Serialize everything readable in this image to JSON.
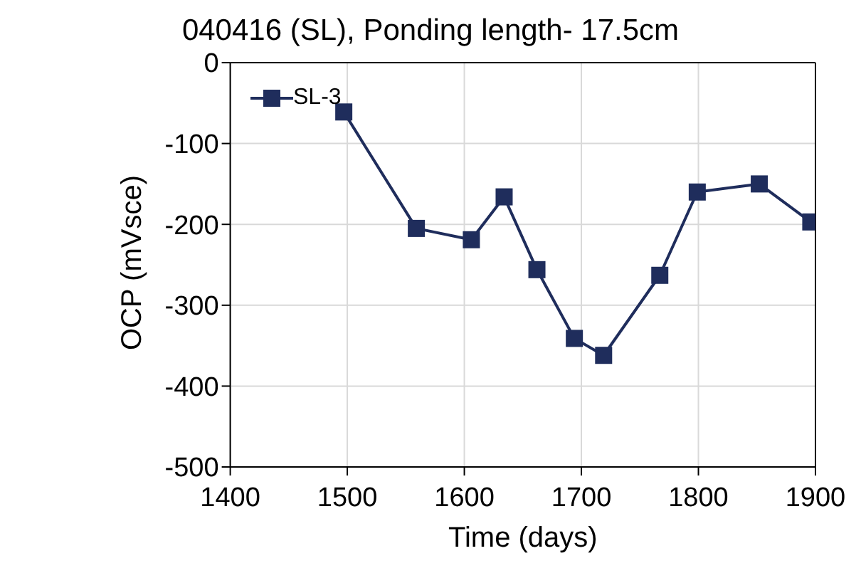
{
  "chart_data": {
    "type": "line",
    "title": "040416 (SL), Ponding length- 17.5cm",
    "xlabel": "Time (days)",
    "ylabel": "OCP (mVsce)",
    "x": [
      1497,
      1559,
      1606,
      1634,
      1662,
      1694,
      1719,
      1767,
      1799,
      1852,
      1896
    ],
    "series": [
      {
        "name": "SL-3",
        "color": "#1f2d5c",
        "values": [
          -61,
          -205,
          -219,
          -166,
          -256,
          -341,
          -362,
          -263,
          -160,
          -150,
          -197
        ]
      }
    ],
    "xlim": [
      1400,
      1900
    ],
    "xticks": [
      1400,
      1500,
      1600,
      1700,
      1800,
      1900
    ],
    "ylim": [
      -500,
      0
    ],
    "yticks": [
      -500,
      -400,
      -300,
      -200,
      -100,
      0
    ],
    "grid": true,
    "legend": "top left",
    "marker": "square",
    "line_style": "solid"
  }
}
